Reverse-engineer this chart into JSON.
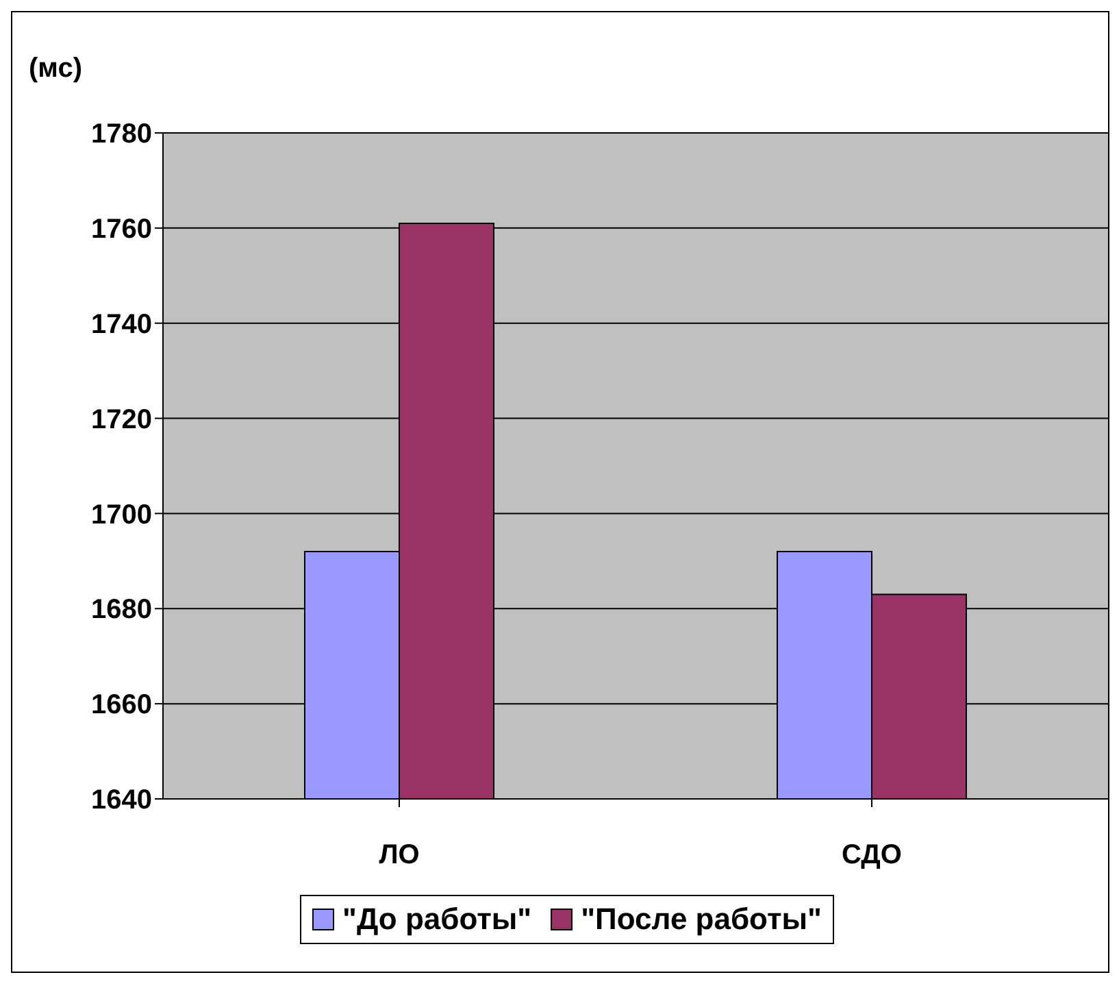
{
  "chart_data": {
    "type": "bar",
    "ylabel": "(мс)",
    "categories": [
      "ЛО",
      "СДО"
    ],
    "series": [
      {
        "name": "\"До работы\"",
        "color": "#9999ff",
        "values": [
          1692,
          1692
        ]
      },
      {
        "name": "\"После работы\"",
        "color": "#993366",
        "values": [
          1761,
          1683
        ]
      }
    ],
    "ylim": [
      1640,
      1780
    ],
    "yticks": [
      1640,
      1660,
      1680,
      1700,
      1720,
      1740,
      1760,
      1780
    ],
    "grid": "y",
    "legend": "bottom"
  }
}
